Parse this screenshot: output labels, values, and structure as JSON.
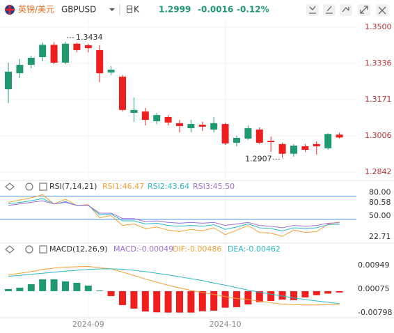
{
  "header": {
    "name": "英镑/美元",
    "symbol": "GBPUSD",
    "period": "日K",
    "price": "1.2999",
    "change": "-0.0016",
    "change_pct": "-0.12%"
  },
  "chart_data": [
    {
      "type": "candlestick",
      "categories": [
        null,
        null,
        null,
        null,
        null,
        null,
        null,
        "2024-09",
        null,
        null,
        null,
        null,
        null,
        null,
        null,
        null,
        null,
        null,
        null,
        "2024-10",
        null,
        null,
        null,
        null,
        null,
        null,
        null,
        null,
        null,
        null
      ],
      "open": [
        1.3218,
        1.3291,
        1.3329,
        1.3364,
        1.342,
        1.3339,
        1.3425,
        1.3418,
        1.3396,
        1.3294,
        1.3275,
        1.3111,
        1.3117,
        1.3073,
        1.3092,
        1.3064,
        1.3041,
        1.3057,
        1.3035,
        1.306,
        1.2975,
        1.2994,
        1.3035,
        1.2984,
        1.2969,
        1.2925,
        1.2959,
        1.2969,
        1.295,
        1.3012
      ],
      "high": [
        1.3339,
        1.3355,
        1.337,
        1.343,
        1.3432,
        1.3434,
        1.343,
        1.3425,
        1.3418,
        1.3323,
        1.3282,
        1.3181,
        1.3133,
        1.3111,
        1.3101,
        1.3079,
        1.3079,
        1.307,
        1.3092,
        1.3067,
        1.3007,
        1.3054,
        1.3045,
        1.3003,
        1.2975,
        1.2969,
        1.2969,
        1.2981,
        1.3018,
        1.3021
      ],
      "low": [
        1.3155,
        1.3269,
        1.3313,
        1.3345,
        1.3332,
        1.3332,
        1.3386,
        1.3386,
        1.325,
        1.3282,
        1.3117,
        1.307,
        1.3054,
        1.306,
        1.3054,
        1.3022,
        1.3022,
        1.3029,
        1.3022,
        1.2965,
        1.2959,
        1.2988,
        1.2969,
        1.2934,
        1.2907,
        1.2912,
        1.2934,
        1.2921,
        1.2943,
        1.2994
      ],
      "close": [
        1.3298,
        1.3329,
        1.3361,
        1.342,
        1.3339,
        1.3425,
        1.3396,
        1.3405,
        1.3291,
        1.3307,
        1.3124,
        1.3124,
        1.3079,
        1.3101,
        1.3067,
        1.3051,
        1.306,
        1.3048,
        1.3064,
        1.2972,
        1.2997,
        1.3041,
        1.2975,
        1.2978,
        1.2925,
        1.2962,
        1.2943,
        1.2959,
        1.3015,
        1.2999
      ],
      "up_color": "#1f9a70",
      "down_color": "#f01e1e",
      "ylim": [
        1.2807,
        1.3535
      ],
      "yticks": [
        {
          "value": 1.35,
          "label": "1.3500"
        },
        1.3336,
        1.3171,
        1.3006,
        1.2842
      ],
      "grid": true
    },
    {
      "type": "line",
      "title": "RSI(7,14,21)",
      "series": [
        {
          "name": "RSI1:46.47",
          "color": "#f5a033",
          "values": [
            72,
            75,
            78,
            82,
            70,
            76,
            68,
            69,
            52,
            55,
            42,
            44,
            38,
            40,
            36,
            34,
            37,
            35,
            39,
            30,
            36,
            42,
            33,
            32,
            28,
            36,
            33,
            34,
            44,
            46.47
          ]
        },
        {
          "name": "RSI2:43.64",
          "color": "#2bb8c8",
          "values": [
            70,
            72,
            74,
            77,
            70,
            73,
            68,
            68,
            56,
            57,
            48,
            48,
            44,
            45,
            42,
            41,
            42,
            41,
            43,
            37,
            40,
            44,
            39,
            38,
            35,
            39,
            38,
            39,
            43,
            43.64
          ]
        },
        {
          "name": "RSI3:45.50",
          "color": "#9d6fdc",
          "values": [
            68,
            70,
            72,
            74,
            70,
            72,
            68,
            68,
            58,
            58,
            51,
            51,
            47,
            48,
            46,
            45,
            46,
            45,
            46,
            42,
            44,
            46,
            42,
            41,
            39,
            42,
            41,
            42,
            45,
            45.5
          ]
        }
      ],
      "ylim": [
        22.71,
        80.58
      ],
      "yticks": [
        {
          "value": 80,
          "label": "80.00"
        },
        {
          "value": 50,
          "label": "50.00"
        }
      ],
      "tick_line_color": "#4a90e2"
    },
    {
      "type": "macd",
      "title": "MACD(12,26,9)",
      "series": [
        {
          "name": "MACD:-0.00049",
          "color": "#9d6fdc",
          "kind": "bar",
          "values": [
            0.00077,
            0.00129,
            0.00257,
            0.00437,
            0.00437,
            0.0036,
            0.00308,
            0.00206,
            0.00026,
            -0.0018,
            -0.00514,
            -0.00643,
            -0.0075,
            -0.0078,
            -0.0079,
            -0.0079,
            -0.0079,
            -0.0074,
            -0.0072,
            -0.0061,
            -0.0059,
            -0.0049,
            -0.0041,
            -0.0036,
            -0.0031,
            -0.0033,
            -0.0023,
            -0.0015,
            -0.0009,
            -0.00049
          ]
        },
        {
          "name": "DIF:-0.00486",
          "color": "#f5a033",
          "kind": "line",
          "values": [
            0.006,
            0.0066,
            0.0072,
            0.008,
            0.0085,
            0.0088,
            0.009,
            0.0091,
            0.0087,
            0.0082,
            0.007,
            0.0058,
            0.0045,
            0.0033,
            0.0022,
            0.0012,
            0.0003,
            -0.0005,
            -0.0012,
            -0.002,
            -0.0027,
            -0.0031,
            -0.0037,
            -0.0042,
            -0.0048,
            -0.005,
            -0.0051,
            -0.0051,
            -0.005,
            -0.00486
          ]
        },
        {
          "name": "DEA:-0.00462",
          "color": "#2bb8c8",
          "kind": "line",
          "values": [
            0.0055,
            0.0058,
            0.0062,
            0.0066,
            0.007,
            0.0074,
            0.0077,
            0.008,
            0.0082,
            0.0082,
            0.0081,
            0.0077,
            0.0072,
            0.0066,
            0.006,
            0.0053,
            0.0046,
            0.0039,
            0.003,
            0.0022,
            0.0013,
            0.0004,
            -0.0004,
            -0.0011,
            -0.0018,
            -0.0025,
            -0.0031,
            -0.0036,
            -0.0041,
            -0.00462
          ]
        }
      ],
      "up_color": "#1f9a70",
      "down_color": "#f01e1e",
      "ylim": [
        -0.00798,
        0.00949
      ],
      "yticks": [
        0.00075
      ]
    }
  ]
}
